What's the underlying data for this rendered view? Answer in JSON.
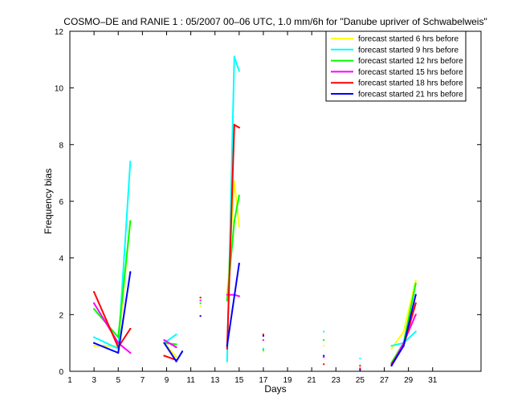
{
  "chart_data": {
    "type": "line",
    "title": "COSMO–DE and RANIE 1 : 05/2007 00–06 UTC, 1.0 mm/6h for \"Danube upriver of Schwabelweis\"",
    "xlabel": "Days",
    "ylabel": "Frequency bias",
    "xlim": [
      1,
      31
    ],
    "x_axis_max": 35,
    "ylim": [
      0,
      12
    ],
    "xticks": [
      1,
      3,
      5,
      7,
      9,
      11,
      13,
      15,
      17,
      19,
      21,
      23,
      25,
      27,
      29,
      31
    ],
    "yticks": [
      0,
      2,
      4,
      6,
      8,
      10,
      12
    ],
    "grid": false,
    "legend_position": "top-right",
    "series": [
      {
        "name": "forecast started 6 hrs before",
        "color": "#ffff00",
        "points": [
          [
            3,
            0.9
          ],
          [
            5,
            0.9
          ],
          [
            6,
            5.3
          ],
          [
            8.8,
            1.0
          ],
          [
            9.8,
            0.5
          ],
          [
            11.8,
            2.3
          ],
          [
            14,
            2.6
          ],
          [
            14.6,
            6.7
          ],
          [
            15,
            5.1
          ],
          [
            17,
            0.7
          ],
          [
            22,
            0.9
          ],
          [
            25,
            0.15
          ],
          [
            27.6,
            0.8
          ],
          [
            28.6,
            1.4
          ],
          [
            29.6,
            3.2
          ]
        ],
        "segments": [
          [
            0,
            1,
            2
          ],
          [
            3,
            4
          ],
          [
            6,
            7,
            8
          ],
          [
            12,
            13,
            14
          ]
        ]
      },
      {
        "name": "forecast started 9 hrs before",
        "color": "#00ffff",
        "points": [
          [
            3,
            1.2
          ],
          [
            5,
            0.8
          ],
          [
            6,
            7.4
          ],
          [
            8.8,
            1.0
          ],
          [
            9.8,
            1.3
          ],
          [
            11.8,
            2.6
          ],
          [
            14,
            0.35
          ],
          [
            14.6,
            11.1
          ],
          [
            15,
            10.6
          ],
          [
            17,
            0.8
          ],
          [
            22,
            1.4
          ],
          [
            25,
            0.45
          ],
          [
            27.6,
            0.9
          ],
          [
            28.6,
            1.0
          ],
          [
            29.6,
            1.4
          ]
        ],
        "segments": [
          [
            0,
            1,
            2
          ],
          [
            3,
            4
          ],
          [
            6,
            7,
            8
          ],
          [
            12,
            13,
            14
          ]
        ]
      },
      {
        "name": "forecast started 12 hrs before",
        "color": "#00ff00",
        "points": [
          [
            3,
            2.2
          ],
          [
            5,
            1.2
          ],
          [
            6,
            5.3
          ],
          [
            8.8,
            1.0
          ],
          [
            9.8,
            0.95
          ],
          [
            11.8,
            2.4
          ],
          [
            14,
            2.5
          ],
          [
            14.6,
            5.3
          ],
          [
            15,
            6.2
          ],
          [
            17,
            0.75
          ],
          [
            22,
            1.1
          ],
          [
            25,
            0.2
          ],
          [
            27.6,
            0.3
          ],
          [
            28.6,
            1.0
          ],
          [
            29.6,
            3.1
          ]
        ],
        "segments": [
          [
            0,
            1,
            2
          ],
          [
            3,
            4
          ],
          [
            6,
            7,
            8
          ],
          [
            12,
            13,
            14
          ]
        ]
      },
      {
        "name": "forecast started 15 hrs before",
        "color": "#ff00ff",
        "points": [
          [
            3,
            2.4
          ],
          [
            5,
            1.0
          ],
          [
            6,
            0.65
          ],
          [
            8.8,
            1.1
          ],
          [
            9.8,
            0.85
          ],
          [
            11.8,
            2.5
          ],
          [
            14,
            2.7
          ],
          [
            14.6,
            2.7
          ],
          [
            15,
            2.65
          ],
          [
            17,
            1.1
          ],
          [
            22,
            0.5
          ],
          [
            25,
            0.2
          ],
          [
            27.6,
            0.2
          ],
          [
            28.6,
            1.0
          ],
          [
            29.6,
            2.0
          ]
        ],
        "segments": [
          [
            0,
            1,
            2
          ],
          [
            3,
            4
          ],
          [
            6,
            7,
            8
          ],
          [
            12,
            13,
            14
          ]
        ]
      },
      {
        "name": "forecast started 18 hrs before",
        "color": "#ff0000",
        "points": [
          [
            3,
            2.8
          ],
          [
            5,
            0.85
          ],
          [
            6,
            1.5
          ],
          [
            8.8,
            0.55
          ],
          [
            9.8,
            0.4
          ],
          [
            11.8,
            2.6
          ],
          [
            14,
            0.8
          ],
          [
            14.6,
            8.7
          ],
          [
            15,
            8.6
          ],
          [
            17,
            1.3
          ],
          [
            22,
            0.25
          ],
          [
            25,
            0.1
          ],
          [
            27.6,
            0.25
          ],
          [
            28.6,
            0.9
          ],
          [
            29.6,
            2.4
          ]
        ],
        "segments": [
          [
            0,
            1,
            2
          ],
          [
            3,
            4
          ],
          [
            6,
            7,
            8
          ],
          [
            12,
            13,
            14
          ]
        ]
      },
      {
        "name": "forecast started 21 hrs before",
        "color": "#0000ff",
        "points": [
          [
            3,
            1.0
          ],
          [
            5,
            0.65
          ],
          [
            6,
            3.5
          ],
          [
            8.8,
            1.0
          ],
          [
            9.8,
            0.35
          ],
          [
            10.3,
            0.7
          ],
          [
            11.8,
            1.95
          ],
          [
            14,
            0.9
          ],
          [
            15,
            3.8
          ],
          [
            17,
            1.25
          ],
          [
            22,
            0.55
          ],
          [
            25,
            0.05
          ],
          [
            27.6,
            0.2
          ],
          [
            28.6,
            0.9
          ],
          [
            29.6,
            2.7
          ]
        ],
        "segments": [
          [
            0,
            1,
            2
          ],
          [
            3,
            4,
            5
          ],
          [
            7,
            8
          ],
          [
            12,
            13,
            14
          ]
        ]
      }
    ]
  }
}
